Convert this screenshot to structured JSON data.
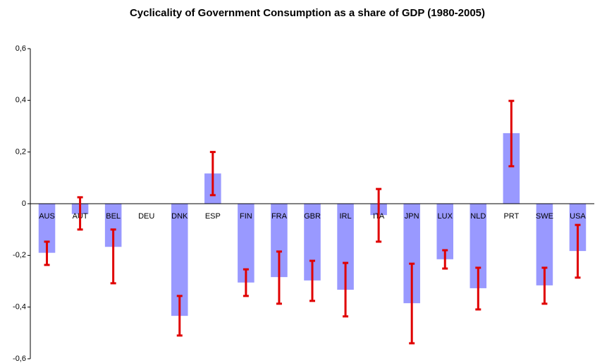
{
  "chart_data": {
    "type": "bar",
    "title": "Cyclicality of Government Consumption as a share of GDP (1980-2005)",
    "categories": [
      "AUS",
      "AUT",
      "BEL",
      "DEU",
      "DNK",
      "ESP",
      "FIN",
      "FRA",
      "GBR",
      "IRL",
      "ITA",
      "JPN",
      "LUX",
      "NLD",
      "PRT",
      "SWE",
      "USA"
    ],
    "series": [
      {
        "color": "#9999ff",
        "values": [
          -0.19,
          -0.04,
          -0.167,
          null,
          -0.434,
          0.117,
          -0.305,
          -0.284,
          -0.297,
          -0.333,
          -0.044,
          -0.385,
          -0.215,
          -0.327,
          0.273,
          -0.316,
          -0.183
        ],
        "error_lower": [
          -0.237,
          -0.1,
          -0.308,
          null,
          -0.51,
          0.033,
          -0.357,
          -0.387,
          -0.376,
          -0.436,
          -0.147,
          -0.54,
          -0.251,
          -0.409,
          0.145,
          -0.387,
          -0.286
        ],
        "error_upper": [
          -0.147,
          0.025,
          -0.1,
          null,
          -0.357,
          0.2,
          -0.254,
          -0.185,
          -0.221,
          -0.229,
          0.057,
          -0.232,
          -0.18,
          -0.248,
          0.398,
          -0.248,
          -0.082
        ],
        "error_color": "#e00000"
      }
    ],
    "ylim": [
      -0.6,
      0.6
    ],
    "yticks": [
      {
        "value": -0.6,
        "label": "-0,6"
      },
      {
        "value": -0.4,
        "label": "-0,4"
      },
      {
        "value": -0.2,
        "label": "-0,2"
      },
      0,
      {
        "value": 0.2,
        "label": "0,2"
      },
      {
        "value": 0.4,
        "label": "0,4"
      },
      {
        "value": 0.6,
        "label": "0,6"
      }
    ],
    "grid": false
  }
}
